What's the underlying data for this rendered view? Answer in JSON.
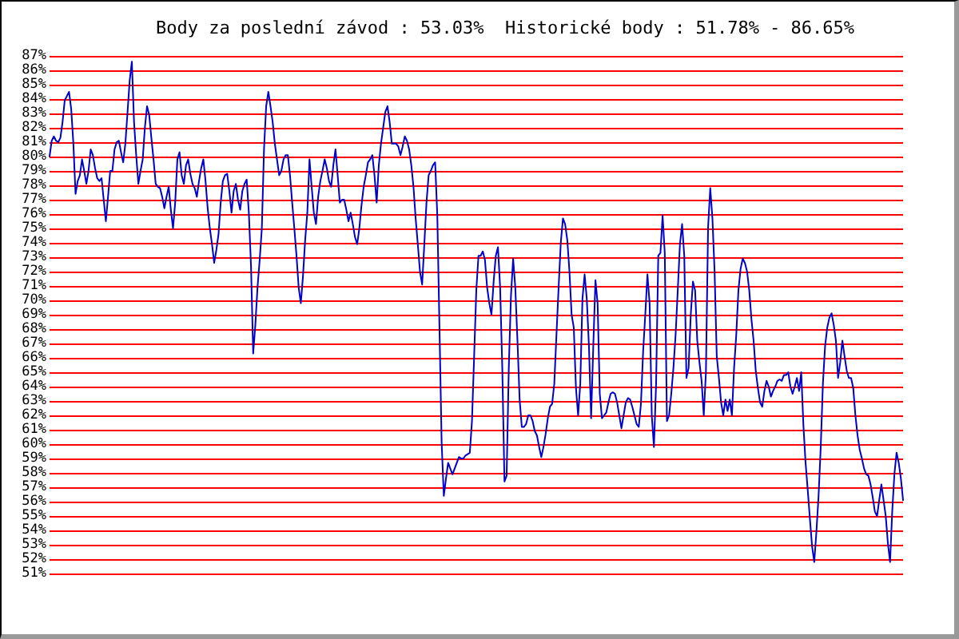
{
  "chart_data": {
    "type": "line",
    "title": "Body za poslední závod : 53.03%  Historické body : 51.78% - 86.65%",
    "ylim": [
      51,
      87
    ],
    "yticks": [
      {
        "value": 51,
        "label": "51%"
      },
      {
        "value": 52,
        "label": "52%"
      },
      {
        "value": 53,
        "label": "53%"
      },
      {
        "value": 54,
        "label": "54%"
      },
      {
        "value": 55,
        "label": "55%"
      },
      {
        "value": 56,
        "label": "56%"
      },
      {
        "value": 57,
        "label": "57%"
      },
      {
        "value": 58,
        "label": "58%"
      },
      {
        "value": 59,
        "label": "59%"
      },
      {
        "value": 60,
        "label": "60%"
      },
      {
        "value": 61,
        "label": "61%"
      },
      {
        "value": 62,
        "label": "62%"
      },
      {
        "value": 63,
        "label": "63%"
      },
      {
        "value": 64,
        "label": "64%"
      },
      {
        "value": 65,
        "label": "65%"
      },
      {
        "value": 66,
        "label": "66%"
      },
      {
        "value": 67,
        "label": "67%"
      },
      {
        "value": 68,
        "label": "68%"
      },
      {
        "value": 69,
        "label": "69%"
      },
      {
        "value": 70,
        "label": "70%"
      },
      {
        "value": 71,
        "label": "71%"
      },
      {
        "value": 72,
        "label": "72%"
      },
      {
        "value": 73,
        "label": "73%"
      },
      {
        "value": 74,
        "label": "74%"
      },
      {
        "value": 75,
        "label": "75%"
      },
      {
        "value": 76,
        "label": "76%"
      },
      {
        "value": 77,
        "label": "77%"
      },
      {
        "value": 78,
        "label": "78%"
      },
      {
        "value": 79,
        "label": "79%"
      },
      {
        "value": 80,
        "label": "80%"
      },
      {
        "value": 81,
        "label": "81%"
      },
      {
        "value": 82,
        "label": "82%"
      },
      {
        "value": 83,
        "label": "83%"
      },
      {
        "value": 84,
        "label": "84%"
      },
      {
        "value": 85,
        "label": "85%"
      },
      {
        "value": 86,
        "label": "86%"
      },
      {
        "value": 87,
        "label": "87%"
      }
    ],
    "grid": "y",
    "marker": "none",
    "line_style": "solid",
    "series": [
      {
        "color": "#0000cc",
        "values": [
          80.0,
          81.1,
          81.4,
          81.1,
          81.0,
          81.3,
          82.4,
          83.9,
          84.2,
          84.5,
          83.3,
          80.9,
          77.4,
          78.3,
          78.7,
          79.8,
          79.0,
          78.1,
          79.0,
          80.5,
          80.1,
          79.2,
          78.5,
          78.3,
          78.5,
          77.0,
          75.5,
          77.2,
          79.0,
          79.0,
          80.5,
          81.0,
          81.1,
          80.3,
          79.6,
          80.9,
          83.1,
          85.3,
          86.6,
          82.4,
          80.1,
          78.1,
          79.0,
          79.8,
          82.0,
          83.5,
          82.9,
          81.3,
          79.8,
          78.1,
          77.9,
          77.8,
          77.2,
          76.4,
          77.2,
          77.9,
          76.3,
          75.0,
          76.8,
          79.8,
          80.3,
          78.7,
          78.1,
          79.4,
          79.8,
          78.8,
          78.1,
          77.8,
          77.2,
          78.3,
          79.2,
          79.8,
          78.3,
          76.4,
          75.0,
          73.9,
          72.6,
          73.5,
          74.6,
          76.8,
          78.3,
          78.7,
          78.8,
          77.6,
          76.1,
          77.6,
          78.1,
          77.0,
          76.3,
          77.6,
          78.1,
          78.4,
          76.1,
          72.4,
          66.3,
          68.3,
          70.9,
          72.8,
          75.0,
          80.5,
          83.5,
          84.5,
          83.5,
          82.4,
          80.9,
          79.8,
          78.7,
          79.0,
          79.8,
          80.1,
          80.1,
          78.7,
          76.8,
          75.0,
          73.1,
          70.9,
          69.8,
          71.7,
          74.2,
          76.1,
          79.8,
          77.9,
          76.1,
          75.3,
          77.2,
          78.3,
          79.0,
          79.8,
          79.2,
          78.3,
          77.9,
          79.4,
          80.5,
          78.7,
          76.8,
          77.0,
          77.0,
          76.3,
          75.5,
          76.1,
          75.3,
          74.4,
          73.9,
          75.0,
          76.6,
          77.9,
          78.7,
          79.6,
          79.8,
          80.1,
          78.7,
          76.8,
          79.4,
          80.9,
          82.0,
          83.1,
          83.5,
          82.4,
          80.9,
          80.9,
          80.9,
          80.7,
          80.1,
          80.7,
          81.4,
          81.1,
          80.5,
          79.4,
          77.9,
          75.7,
          73.9,
          72.0,
          71.1,
          73.9,
          76.8,
          78.7,
          79.0,
          79.4,
          79.6,
          75.9,
          68.1,
          60.1,
          56.4,
          57.6,
          58.7,
          58.3,
          57.9,
          58.3,
          58.7,
          59.1,
          59.0,
          59.0,
          59.2,
          59.3,
          59.4,
          61.6,
          66.1,
          70.7,
          73.1,
          73.1,
          73.4,
          72.8,
          70.9,
          69.8,
          69.0,
          71.3,
          73.1,
          73.7,
          70.9,
          65.3,
          57.4,
          57.8,
          65.3,
          70.3,
          72.9,
          70.9,
          67.2,
          63.1,
          61.2,
          61.2,
          61.4,
          62.0,
          62.0,
          61.6,
          60.9,
          60.6,
          59.8,
          59.1,
          59.8,
          60.7,
          61.8,
          62.6,
          62.8,
          64.2,
          67.6,
          70.9,
          74.0,
          75.7,
          75.3,
          74.2,
          72.0,
          69.0,
          68.1,
          63.9,
          62.0,
          64.2,
          70.1,
          71.8,
          70.1,
          66.8,
          61.8,
          66.8,
          71.4,
          69.8,
          63.5,
          61.8,
          62.0,
          62.2,
          62.9,
          63.5,
          63.6,
          63.5,
          62.9,
          62.0,
          61.1,
          62.0,
          62.9,
          63.2,
          63.1,
          62.6,
          62.0,
          61.4,
          61.2,
          62.8,
          66.4,
          69.0,
          71.8,
          69.8,
          62.0,
          59.8,
          64.2,
          73.1,
          73.3,
          75.9,
          73.3,
          61.6,
          62.0,
          63.5,
          65.3,
          67.6,
          70.7,
          73.9,
          75.3,
          73.1,
          64.6,
          65.3,
          69.0,
          71.3,
          70.7,
          67.2,
          65.7,
          64.4,
          62.0,
          65.0,
          75.1,
          77.8,
          75.7,
          72.0,
          66.1,
          64.6,
          62.9,
          62.0,
          63.1,
          62.3,
          63.1,
          62.0,
          65.3,
          67.6,
          70.7,
          72.2,
          72.9,
          72.6,
          72.0,
          70.7,
          68.7,
          67.2,
          65.1,
          63.9,
          62.9,
          62.6,
          63.7,
          64.4,
          64.0,
          63.3,
          63.7,
          64.0,
          64.4,
          64.5,
          64.4,
          64.8,
          64.8,
          65.0,
          64.0,
          63.5,
          64.0,
          64.6,
          63.7,
          65.0,
          61.3,
          58.7,
          56.8,
          54.8,
          52.9,
          51.8,
          53.9,
          56.4,
          59.8,
          64.2,
          66.8,
          68.1,
          68.8,
          69.1,
          68.3,
          67.2,
          64.6,
          65.7,
          67.2,
          66.1,
          65.1,
          64.6,
          64.6,
          63.9,
          62.0,
          60.6,
          59.6,
          59.0,
          58.3,
          57.9,
          57.8,
          57.2,
          56.3,
          55.3,
          55.0,
          56.1,
          57.2,
          56.1,
          55.0,
          53.1,
          51.8,
          55.3,
          57.9,
          59.4,
          58.7,
          57.6,
          56.1
        ]
      }
    ]
  }
}
